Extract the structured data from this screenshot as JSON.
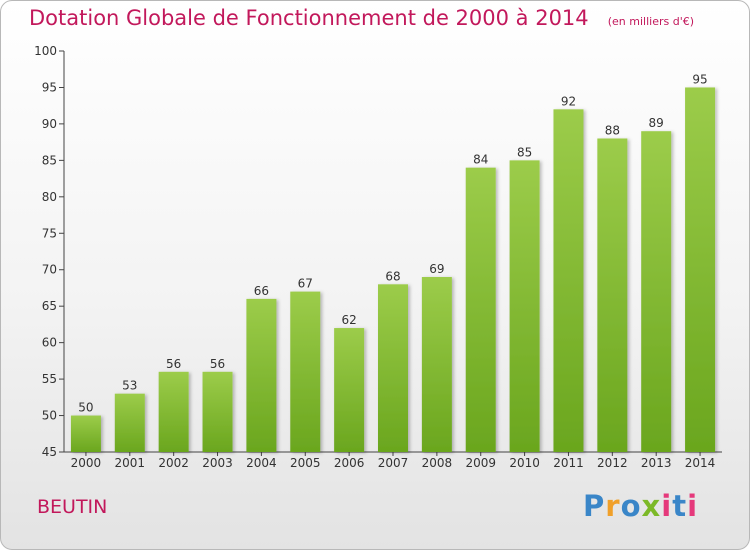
{
  "chart_data": {
    "type": "bar",
    "title": "Dotation Globale de Fonctionnement de 2000 à 2014",
    "subtitle": "(en milliers d'€)",
    "categories": [
      "2000",
      "2001",
      "2002",
      "2003",
      "2004",
      "2005",
      "2006",
      "2007",
      "2008",
      "2009",
      "2010",
      "2011",
      "2012",
      "2013",
      "2014"
    ],
    "values": [
      50,
      53,
      56,
      56,
      66,
      67,
      62,
      68,
      69,
      84,
      85,
      92,
      88,
      89,
      95
    ],
    "ylim": [
      45,
      100
    ],
    "yticks": [
      45,
      50,
      55,
      60,
      65,
      70,
      75,
      80,
      85,
      90,
      95,
      100
    ],
    "grid": false,
    "bar_color_top": "#9ccc4a",
    "bar_color_bottom": "#6aa61e"
  },
  "commune": "BEUTIN",
  "logo": {
    "text": "Proxiti",
    "colors": [
      "#3a86c8",
      "#f0a02a",
      "#7cb928",
      "#e5397b"
    ]
  }
}
